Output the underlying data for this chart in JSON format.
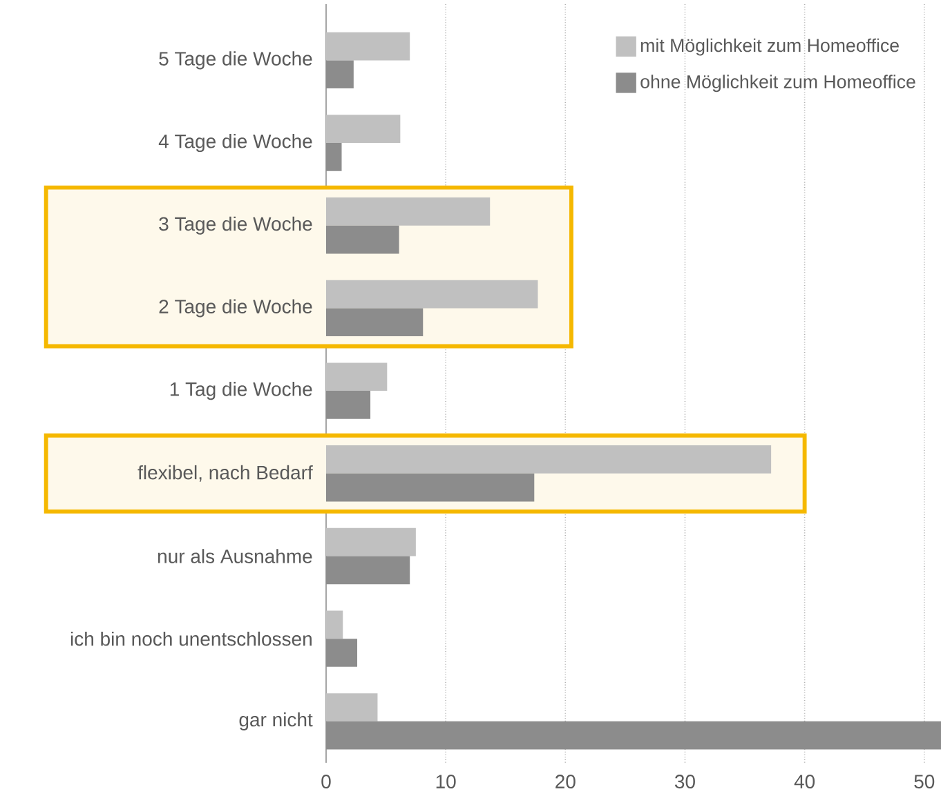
{
  "chart_data": {
    "type": "bar",
    "orientation": "horizontal",
    "categories": [
      "5 Tage die Woche",
      "4 Tage die Woche",
      "3 Tage die Woche",
      "2 Tage die Woche",
      "1 Tag die Woche",
      "flexibel, nach Bedarf",
      "nur als Ausnahme",
      "ich bin noch unentschlossen",
      "gar nicht"
    ],
    "series": [
      {
        "name": "mit Möglichkeit zum Homeoffice",
        "color": "#c0c0c0",
        "values": [
          7.0,
          6.2,
          13.7,
          17.7,
          5.1,
          37.2,
          7.5,
          1.4,
          4.3
        ]
      },
      {
        "name": "ohne Möglichkeit zum Homeoffice",
        "color": "#8c8c8c",
        "values": [
          2.3,
          1.3,
          6.1,
          8.1,
          3.7,
          17.4,
          7.0,
          2.6,
          51.4
        ]
      }
    ],
    "xlim": [
      0,
      51.4
    ],
    "xticks": [
      0,
      10,
      20,
      30,
      40,
      50
    ],
    "grid": "x",
    "legend": "top right",
    "bands": [
      {
        "axis": "y",
        "from": "3 Tage die Woche",
        "to": "2 Tage die Woche"
      },
      {
        "axis": "y",
        "from": "flexibel, nach Bedarf",
        "to": "flexibel, nach Bedarf"
      }
    ]
  }
}
